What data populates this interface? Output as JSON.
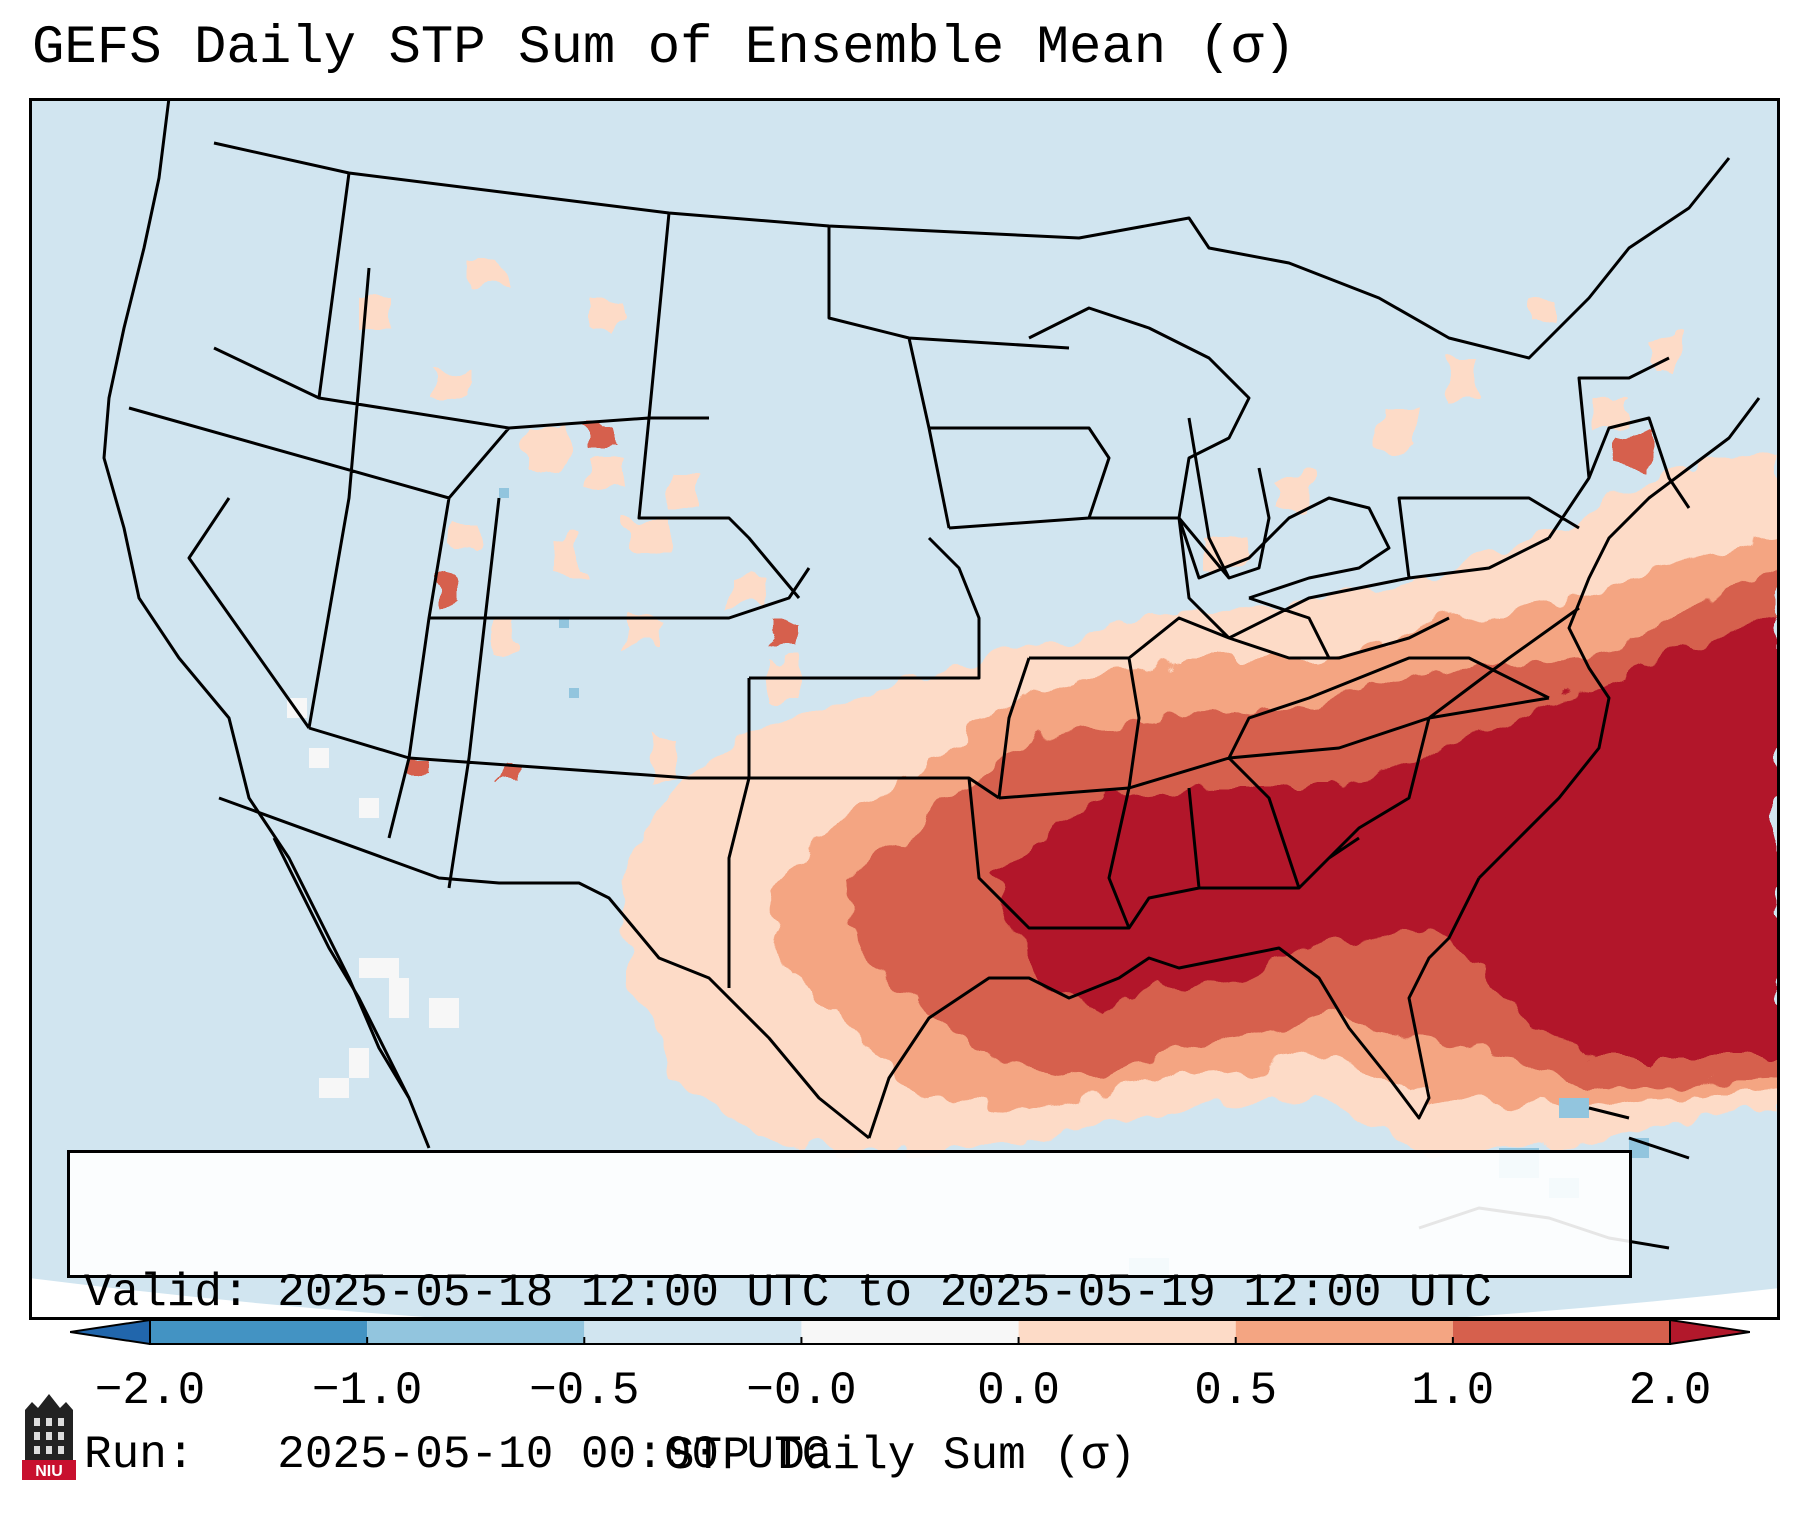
{
  "title": "GEFS Daily STP Sum of Ensemble Mean (σ)",
  "valid_info": {
    "valid_label": "Valid:",
    "valid_value": "2025-05-18 12:00 UTC to 2025-05-19 12:00 UTC",
    "run_label": "Run:",
    "run_value": "2025-05-10 00:00 UTC"
  },
  "colorbar": {
    "label": "STP Daily Sum (σ)",
    "tick_labels": [
      "−2.0",
      "−1.0",
      "−0.5",
      "−0.0",
      "0.0",
      "0.5",
      "1.0",
      "2.0"
    ],
    "bins": [
      {
        "range": "below -2.0",
        "color": "#2166ac"
      },
      {
        "range": "-2.0 to -1.0",
        "color": "#4393c3"
      },
      {
        "range": "-1.0 to -0.5",
        "color": "#92c5de"
      },
      {
        "range": "-0.5 to -0.0",
        "color": "#d1e5f0"
      },
      {
        "range": "-0.0 to 0.0",
        "color": "#f7f7f7"
      },
      {
        "range": "0.0 to 0.5",
        "color": "#fddbc7"
      },
      {
        "range": "0.5 to 1.0",
        "color": "#f4a582"
      },
      {
        "range": "1.0 to 2.0",
        "color": "#d6604d"
      },
      {
        "range": "above 2.0",
        "color": "#b2182b"
      }
    ]
  },
  "map": {
    "background_color": "#d1e5f0",
    "regions": [
      {
        "name": "southeast core",
        "value_bin": "above 2.0"
      },
      {
        "name": "western atlantic offshore",
        "value_bin": "above 2.0"
      },
      {
        "name": "lower mississippi valley",
        "value_bin": "above 2.0"
      },
      {
        "name": "ohio valley",
        "value_bin": "1.0 to 2.0"
      },
      {
        "name": "ozarks and arklatex",
        "value_bin": "1.0 to 2.0"
      },
      {
        "name": "gulf coast",
        "value_bin": "1.0 to 2.0"
      },
      {
        "name": "mid-atlantic",
        "value_bin": "1.0 to 2.0"
      },
      {
        "name": "southern plains",
        "value_bin": "0.0 to 0.5"
      },
      {
        "name": "great lakes fringe",
        "value_bin": "0.0 to 0.5"
      },
      {
        "name": "northeast",
        "value_bin": "0.0 to 0.5"
      },
      {
        "name": "baja and mexico pacific",
        "value_bin": "-0.0 to 0.0"
      },
      {
        "name": "caribbean",
        "value_bin": "-1.0 to -0.5"
      }
    ]
  },
  "logo": {
    "text": "NIU"
  }
}
